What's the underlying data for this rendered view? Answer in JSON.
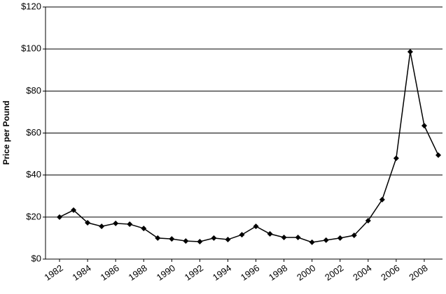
{
  "chart_data": {
    "type": "line",
    "y_label": "Price per Pound",
    "x": [
      1982,
      1983,
      1984,
      1985,
      1986,
      1987,
      1988,
      1989,
      1990,
      1991,
      1992,
      1993,
      1994,
      1995,
      1996,
      1997,
      1998,
      1999,
      2000,
      2001,
      2002,
      2003,
      2004,
      2005,
      2006,
      2007,
      2008,
      2009
    ],
    "series": [
      {
        "color": "#000000",
        "values": [
          20,
          23.3,
          17.3,
          15.6,
          17,
          16.6,
          14.6,
          10,
          9.6,
          8.6,
          8.3,
          10,
          9.3,
          11.6,
          15.6,
          12,
          10.3,
          10.3,
          8,
          9,
          10,
          11.3,
          18.3,
          28.3,
          48,
          98.7,
          63.5,
          49.5
        ]
      }
    ],
    "xlim": [
      1981,
      2009.3
    ],
    "xticks": [
      1982,
      1984,
      1986,
      1988,
      1990,
      1992,
      1994,
      1996,
      1998,
      2000,
      2002,
      2004,
      2006,
      2008
    ],
    "ylim": [
      0,
      120
    ],
    "yticks": [
      {
        "value": 0,
        "label": "$0"
      },
      {
        "value": 20,
        "label": "$20"
      },
      {
        "value": 40,
        "label": "$40"
      },
      {
        "value": 60,
        "label": "$60"
      },
      {
        "value": 80,
        "label": "$80"
      },
      {
        "value": 100,
        "label": "$100"
      },
      {
        "value": 120,
        "label": "$120"
      }
    ],
    "grid": true
  }
}
